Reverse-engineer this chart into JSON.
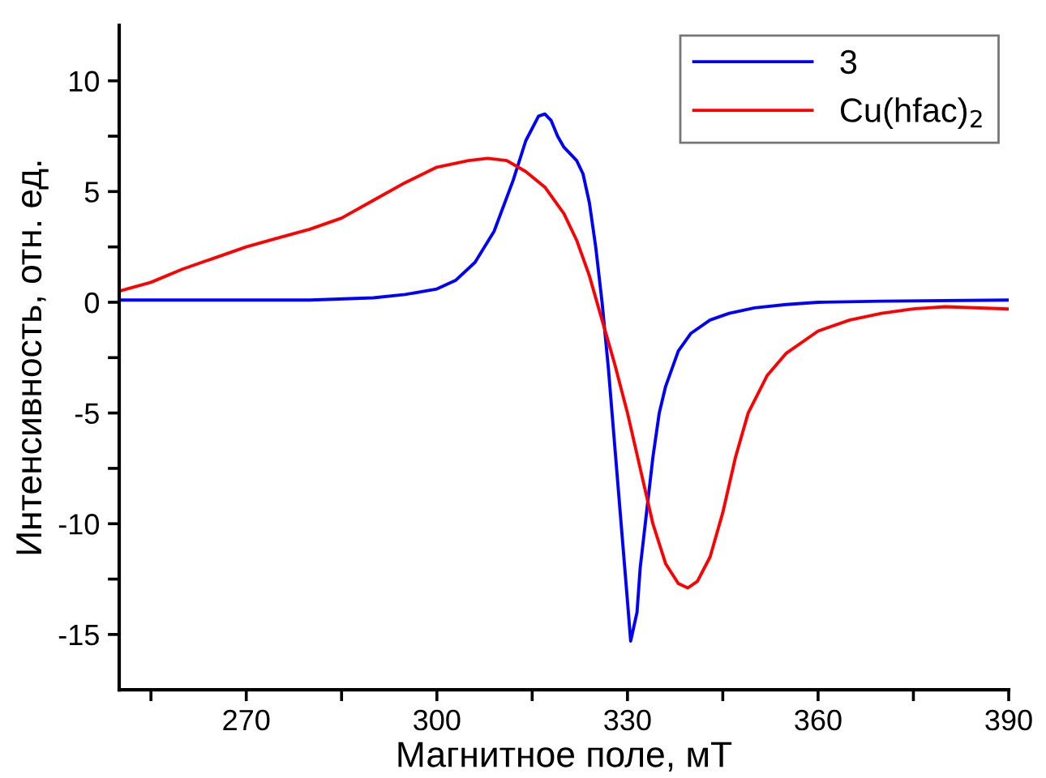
{
  "chart_data": {
    "type": "line",
    "xlabel": "Магнитное поле, мТ",
    "ylabel": "Интенсивность, отн. ед.",
    "xlim": [
      250,
      390
    ],
    "ylim": [
      -17.5,
      12.5
    ],
    "xticks": [
      {
        "value": 255,
        "label": null
      },
      270,
      {
        "value": 285,
        "label": null
      },
      300,
      {
        "value": 315,
        "label": null
      },
      330,
      {
        "value": 345,
        "label": null
      },
      360,
      {
        "value": 375,
        "label": null
      },
      390
    ],
    "yticks": [
      -15,
      {
        "value": -12.5,
        "label": null
      },
      -10,
      {
        "value": -7.5,
        "label": null
      },
      -5,
      {
        "value": -2.5,
        "label": null
      },
      0,
      {
        "value": 2.5,
        "label": null
      },
      5,
      {
        "value": 7.5,
        "label": null
      },
      10
    ],
    "grid": false,
    "legend": "top right",
    "marker": "none",
    "line_style": "solid",
    "series": [
      {
        "name": "3",
        "color": "#0000ff",
        "x": [
          250,
          280,
          290,
          295,
          300,
          303,
          306,
          309,
          312,
          314,
          316,
          317,
          318,
          319,
          320,
          322,
          323,
          324,
          325,
          326,
          327,
          328,
          329,
          330,
          330.5,
          331.5,
          332,
          333,
          334,
          335,
          336,
          338,
          340,
          343,
          346,
          350,
          355,
          360,
          370,
          390
        ],
        "values": [
          0.1,
          0.1,
          0.2,
          0.35,
          0.6,
          1.0,
          1.8,
          3.2,
          5.5,
          7.3,
          8.4,
          8.5,
          8.2,
          7.5,
          7.0,
          6.4,
          5.8,
          4.5,
          2.5,
          0,
          -3,
          -6.5,
          -10,
          -13.5,
          -15.3,
          -14,
          -12,
          -9.5,
          -7,
          -5,
          -3.8,
          -2.2,
          -1.4,
          -0.8,
          -0.5,
          -0.25,
          -0.1,
          0,
          0.05,
          0.1
        ]
      },
      {
        "name": "Cu(hfac)$_{2}$",
        "color": "#ff0000",
        "x": [
          250,
          255,
          260,
          265,
          270,
          275,
          280,
          285,
          290,
          295,
          300,
          305,
          308,
          311,
          314,
          317,
          320,
          322,
          324,
          326,
          328,
          330,
          332,
          334,
          336,
          338,
          339.5,
          341,
          343,
          345,
          347,
          349,
          352,
          355,
          360,
          365,
          370,
          375,
          380,
          390
        ],
        "values": [
          0.5,
          0.9,
          1.5,
          2.0,
          2.5,
          2.9,
          3.3,
          3.8,
          4.6,
          5.4,
          6.1,
          6.4,
          6.5,
          6.4,
          5.9,
          5.2,
          4.0,
          2.8,
          1.2,
          -0.8,
          -2.8,
          -5,
          -7.5,
          -10,
          -11.8,
          -12.7,
          -12.9,
          -12.6,
          -11.5,
          -9.5,
          -7,
          -5,
          -3.3,
          -2.3,
          -1.3,
          -0.8,
          -0.5,
          -0.3,
          -0.2,
          -0.3
        ]
      }
    ]
  }
}
